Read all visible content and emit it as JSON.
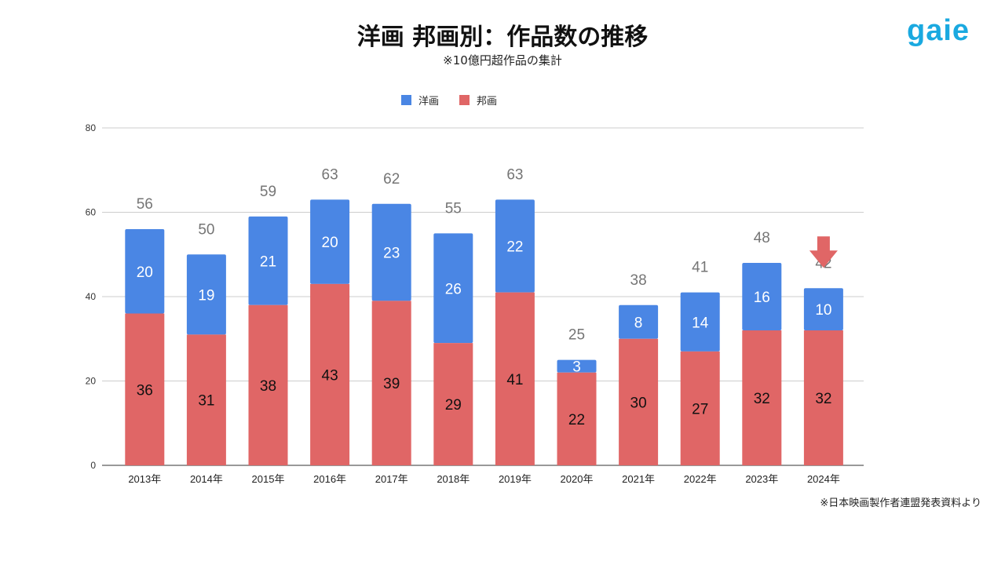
{
  "title": "洋画 邦画別：作品数の推移",
  "subtitle": "※10億円超作品の集計",
  "logo": "gaie",
  "source": "※日本映画製作者連盟発表資料より",
  "colors": {
    "foreign": "#4a86e4",
    "domestic": "#e06666",
    "total_label": "#757575",
    "arrow": "#e06666"
  },
  "annotation": {
    "type": "down-arrow",
    "category": "2024年"
  },
  "chart_data": {
    "type": "bar",
    "stacked": true,
    "categories": [
      "2013年",
      "2014年",
      "2015年",
      "2016年",
      "2017年",
      "2018年",
      "2019年",
      "2020年",
      "2021年",
      "2022年",
      "2023年",
      "2024年"
    ],
    "series": [
      {
        "name": "邦画",
        "color": "#e06666",
        "values": [
          36,
          31,
          38,
          43,
          39,
          29,
          41,
          22,
          30,
          27,
          32,
          32
        ]
      },
      {
        "name": "洋画",
        "color": "#4a86e4",
        "values": [
          20,
          19,
          21,
          20,
          23,
          26,
          22,
          3,
          8,
          14,
          16,
          10
        ]
      }
    ],
    "totals": [
      56,
      50,
      59,
      63,
      62,
      55,
      63,
      25,
      38,
      41,
      48,
      42
    ],
    "ylim": [
      0,
      80
    ],
    "yticks": [
      0,
      20,
      40,
      60,
      80
    ],
    "grid": true,
    "legend": {
      "placement": "top",
      "order": [
        "洋画",
        "邦画"
      ]
    }
  }
}
